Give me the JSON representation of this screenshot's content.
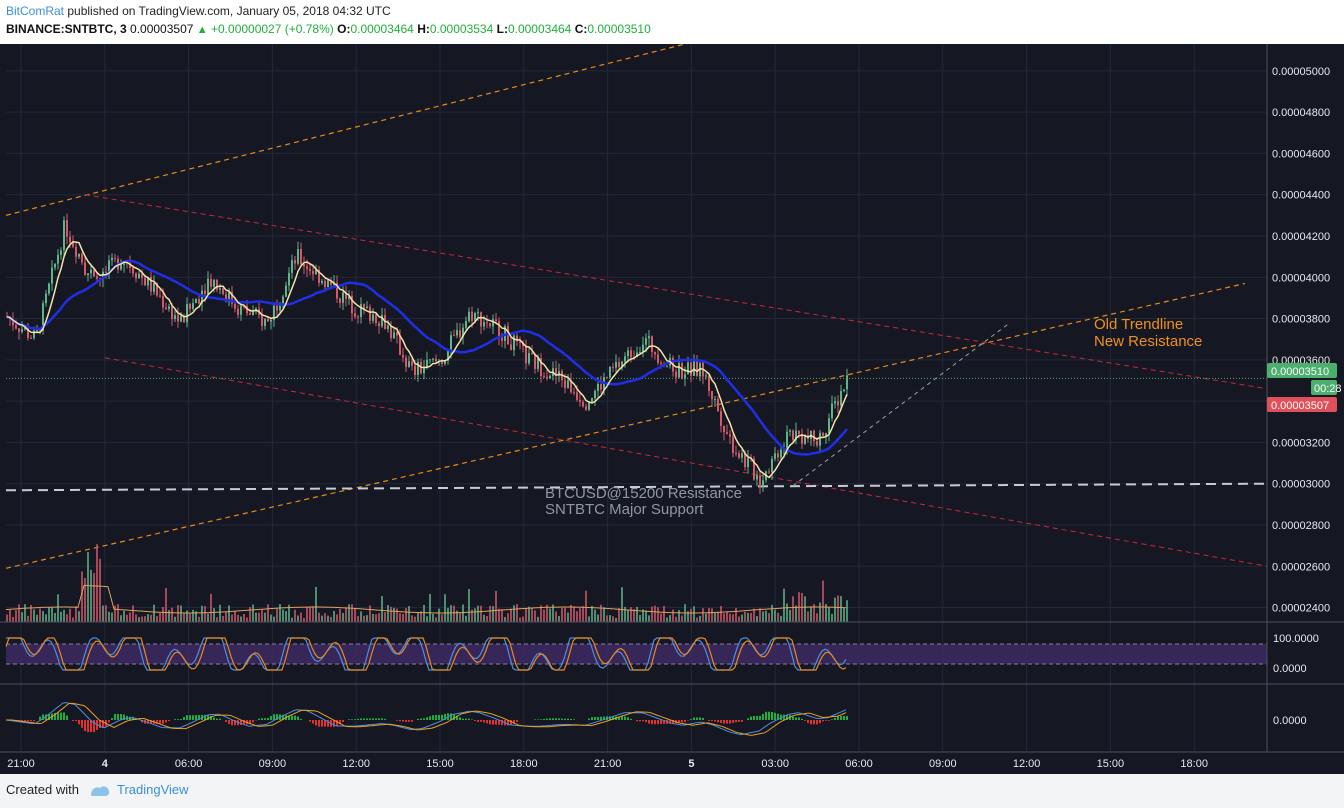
{
  "header": {
    "author": "BitComRat",
    "published_text": "published on TradingView.com, January 05, 2018 04:32 UTC"
  },
  "ohlc": {
    "symbol": "BINANCE:SNTBTC, 3",
    "last": "0.00003507",
    "change": "+0.00000027 (+0.78%)",
    "o_label": "O:",
    "o_val": "0.00003464",
    "h_label": "H:",
    "h_val": "0.00003534",
    "l_label": "L:",
    "l_val": "0.00003464",
    "c_label": "C:",
    "c_val": "0.00003510"
  },
  "footer": {
    "created_with": "Created with",
    "brand": "TradingView"
  },
  "colors": {
    "background": "#151823",
    "grid": "#232838",
    "up": "#5fb58a",
    "down": "#d45a6a",
    "ma_blue": "#1f2fe6",
    "ma_yellow": "#f3e3a6",
    "channel_red": "#c8283a",
    "trend_orange": "#e8881c",
    "support_white": "#c8cbd2",
    "price_green": "#4caf6e",
    "price_red": "#e0505a",
    "annot_orange": "#f0901e",
    "annot_gray": "#8e96a8"
  },
  "chart_data": {
    "type": "candlestick",
    "symbol": "BINANCE:SNTBTC",
    "interval": "3",
    "y_range": [
      2.33e-05,
      5.13e-05
    ],
    "y_ticks": [
      "0.00005000",
      "0.00004800",
      "0.00004600",
      "0.00004400",
      "0.00004200",
      "0.00004000",
      "0.00003800",
      "0.00003600",
      "0.00003400",
      "0.00003200",
      "0.00003000",
      "0.00002800",
      "0.00002600",
      "0.00002400"
    ],
    "x_ticks": [
      "21:00",
      "4",
      "06:00",
      "09:00",
      "12:00",
      "15:00",
      "18:00",
      "21:00",
      "5",
      "03:00",
      "06:00",
      "09:00",
      "12:00",
      "15:00",
      "18:00"
    ],
    "price_path": [
      {
        "t": "21:00",
        "p": 3.81e-05
      },
      {
        "t": "3",
        "p": 3.7e-05
      },
      {
        "t": "4",
        "p": 4.25e-05
      },
      {
        "t": "5",
        "p": 3.97e-05
      },
      {
        "t": "06:00",
        "p": 4.1e-05
      },
      {
        "t": "7",
        "p": 3.95e-05
      },
      {
        "t": "8",
        "p": 3.78e-05
      },
      {
        "t": "9",
        "p": 4e-05
      },
      {
        "t": "09:00",
        "p": 3.85e-05
      },
      {
        "t": "10",
        "p": 3.78e-05
      },
      {
        "t": "11",
        "p": 4.1e-05
      },
      {
        "t": "12:00",
        "p": 3.98e-05
      },
      {
        "t": "13",
        "p": 3.85e-05
      },
      {
        "t": "14",
        "p": 3.8e-05
      },
      {
        "t": "15:00",
        "p": 3.54e-05
      },
      {
        "t": "16",
        "p": 3.6e-05
      },
      {
        "t": "17",
        "p": 3.83e-05
      },
      {
        "t": "18:00",
        "p": 3.75e-05
      },
      {
        "t": "19",
        "p": 3.6e-05
      },
      {
        "t": "20",
        "p": 3.52e-05
      },
      {
        "t": "21:00",
        "p": 3.4e-05
      },
      {
        "t": "22",
        "p": 3.56e-05
      },
      {
        "t": "23",
        "p": 3.7e-05
      },
      {
        "t": "5",
        "p": 3.55e-05
      },
      {
        "t": "1",
        "p": 3.55e-05
      },
      {
        "t": "2",
        "p": 3.2e-05
      },
      {
        "t": "03:00",
        "p": 3.02e-05
      },
      {
        "t": "03:40",
        "p": 3.25e-05
      },
      {
        "t": "04:00",
        "p": 3.2e-05
      },
      {
        "t": "04:30",
        "p": 3.51e-05
      }
    ],
    "price_labels": {
      "last": "0.00003510",
      "countdown": "00:28",
      "prev": "0.00003507"
    },
    "annotations": [
      {
        "text": "Old Trendline",
        "color": "orange"
      },
      {
        "text": "New Resistance",
        "color": "orange"
      },
      {
        "text": "BTCUSD@15200 Resistance",
        "color": "gray"
      },
      {
        "text": "SNTBTC Major Support",
        "color": "gray"
      }
    ],
    "rsi_ticks": [
      "100.0000",
      "0.0000"
    ],
    "macd_ticks": [
      "0.0000"
    ]
  }
}
